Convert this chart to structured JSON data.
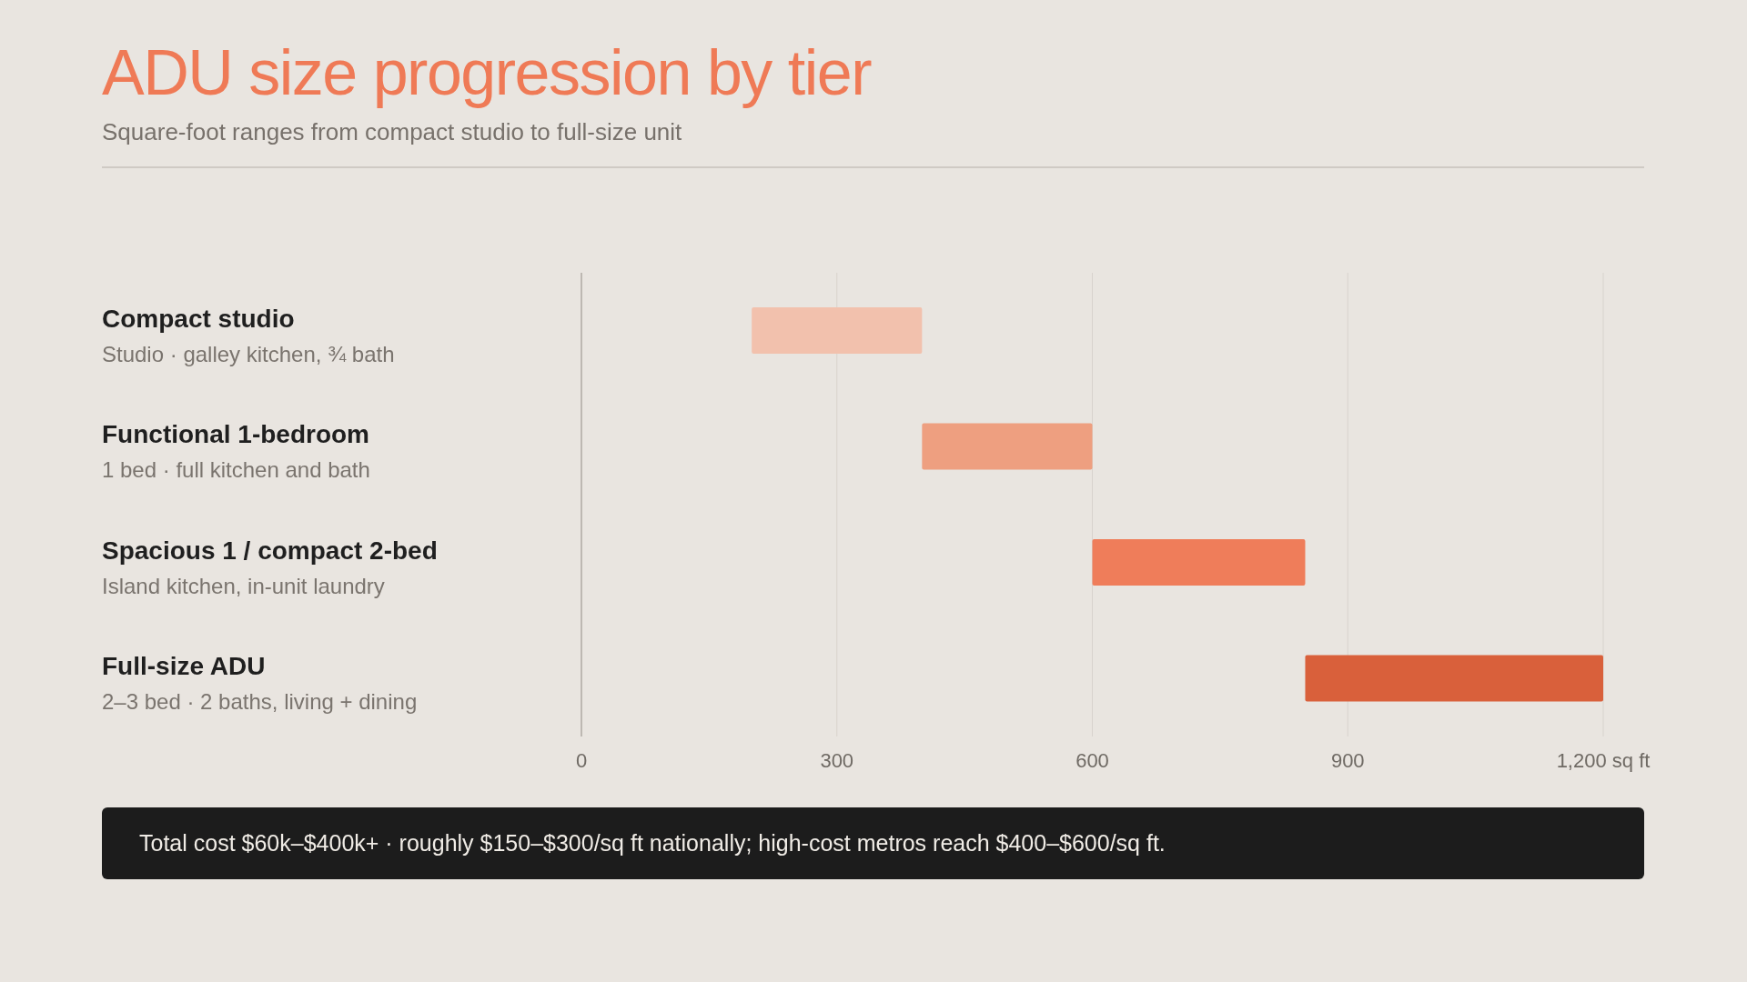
{
  "chart_data": {
    "type": "bar",
    "orientation": "horizontal",
    "title": "ADU size progression by tier",
    "subtitle": "Square-foot ranges from compact studio to full-size unit",
    "categories": [
      "Compact studio",
      "Functional 1-bedroom",
      "Spacious 1 / compact 2-bed",
      "Full-size ADU"
    ],
    "base": [
      200,
      400,
      600,
      850
    ],
    "values": [
      200,
      200,
      250,
      350
    ],
    "colors": [
      "#f2c1ad",
      "#ee9f80",
      "#ef7d5a",
      "#d9603b"
    ],
    "xlim": [
      0,
      1200
    ],
    "xticks": [
      0,
      300,
      600,
      900,
      {
        "value": 1200,
        "label": "1,200 sq ft"
      }
    ],
    "grid": "x",
    "annotations": [
      "Studio · galley kitchen, ¾ bath",
      "1 bed · full kitchen and bath",
      "Island kitchen, in-unit laundry",
      "2–3 bed · 2 baths, living + dining",
      "Total cost $60k–$400k+ · roughly $150–$300/sq ft nationally; high-cost metros reach $400–$600/sq ft."
    ]
  }
}
